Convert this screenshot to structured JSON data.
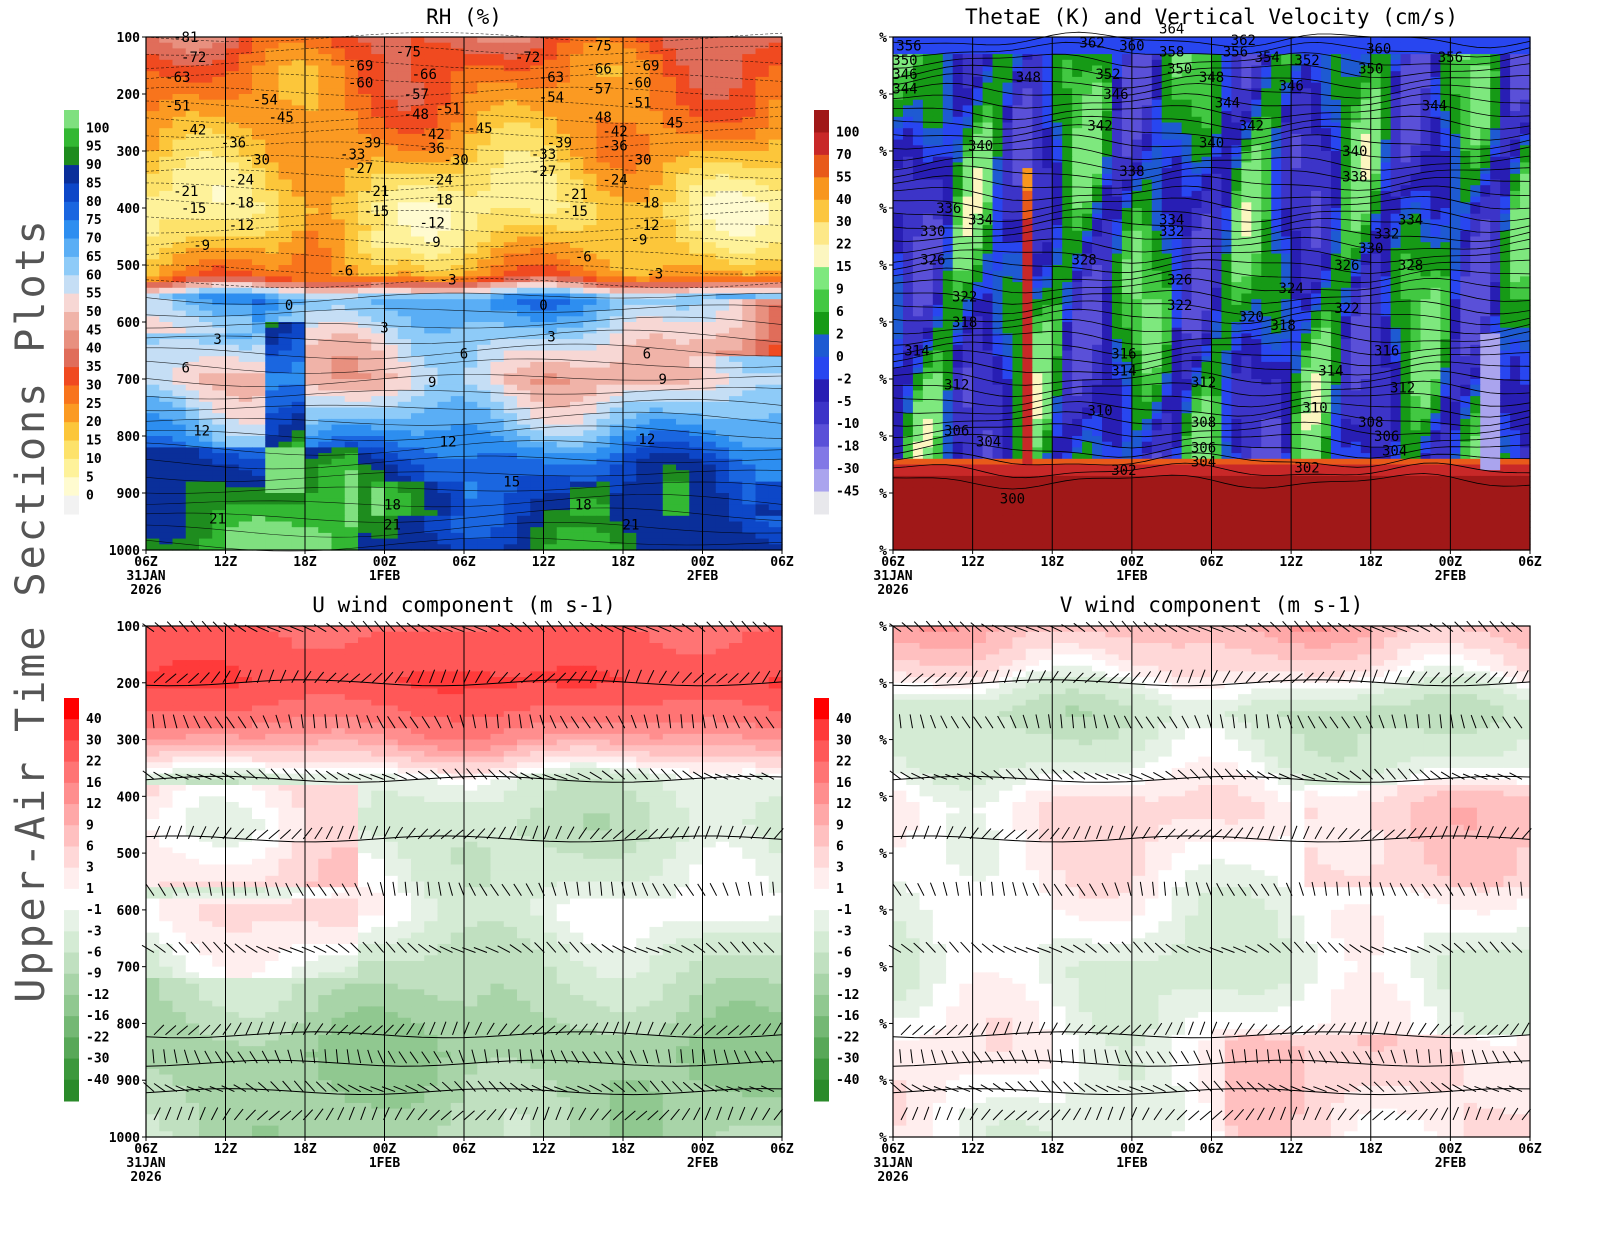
{
  "side_title": "Upper-Air Time Sections Plots",
  "time_axis": {
    "ticks": [
      "06Z",
      "12Z",
      "18Z",
      "00Z",
      "06Z",
      "12Z",
      "18Z",
      "00Z",
      "06Z"
    ],
    "date_labels": [
      {
        "tick": 0,
        "lines": [
          "31JAN",
          "2026"
        ]
      },
      {
        "tick": 3,
        "lines": [
          "1FEB"
        ]
      },
      {
        "tick": 7,
        "lines": [
          "2FEB"
        ]
      }
    ]
  },
  "pressure_axis": {
    "levels": [
      100,
      200,
      300,
      400,
      500,
      600,
      700,
      800,
      900,
      1000
    ],
    "percent_label": "%"
  },
  "chart_data": [
    {
      "id": "rh",
      "type": "heatmap",
      "title": "RH (%)",
      "y_tick_style": "pressure",
      "colorbar": {
        "side": "left",
        "labels": [
          "100",
          "95",
          "90",
          "85",
          "80",
          "75",
          "70",
          "65",
          "60",
          "55",
          "50",
          "45",
          "40",
          "35",
          "30",
          "25",
          "20",
          "15",
          "10",
          "5",
          "0"
        ],
        "colors": [
          "#7fe07f",
          "#33b833",
          "#1e8c1e",
          "#0a2f9a",
          "#0d47c8",
          "#1a66e0",
          "#2d8ef0",
          "#5aaef5",
          "#8ecbf8",
          "#c5def5",
          "#f7d7d4",
          "#f0b3a8",
          "#e8907f",
          "#e06d5a",
          "#f04a20",
          "#f8741c",
          "#fb9a22",
          "#fcc63a",
          "#fde26a",
          "#fef29a",
          "#fffbd0",
          "#f2f2f2"
        ]
      },
      "rh_profile": [
        {
          "p": 100,
          "rh": 35
        },
        {
          "p": 160,
          "rh": 28
        },
        {
          "p": 230,
          "rh": 25
        },
        {
          "p": 300,
          "rh": 20
        },
        {
          "p": 340,
          "rh": 15
        },
        {
          "p": 400,
          "rh": 10
        },
        {
          "p": 460,
          "rh": 15
        },
        {
          "p": 520,
          "rh": 25
        },
        {
          "p": 560,
          "rh": 70
        },
        {
          "p": 650,
          "rh": 55
        },
        {
          "p": 700,
          "rh": 50
        },
        {
          "p": 780,
          "rh": 65
        },
        {
          "p": 850,
          "rh": 80
        },
        {
          "p": 920,
          "rh": 85
        },
        {
          "p": 1000,
          "rh": 90
        }
      ],
      "contour_labels": [
        {
          "t": 0.5,
          "p": 100,
          "v": "-81"
        },
        {
          "t": 0.6,
          "p": 135,
          "v": "-72"
        },
        {
          "t": 0.4,
          "p": 170,
          "v": "-63"
        },
        {
          "t": 0.4,
          "p": 220,
          "v": "-51"
        },
        {
          "t": 0.6,
          "p": 262,
          "v": "-42"
        },
        {
          "t": 1.5,
          "p": 210,
          "v": "-54"
        },
        {
          "t": 1.7,
          "p": 240,
          "v": "-45"
        },
        {
          "t": 1.1,
          "p": 285,
          "v": "-36"
        },
        {
          "t": 1.4,
          "p": 315,
          "v": "-30"
        },
        {
          "t": 0.5,
          "p": 370,
          "v": "-21"
        },
        {
          "t": 1.2,
          "p": 350,
          "v": "-24"
        },
        {
          "t": 0.6,
          "p": 400,
          "v": "-15"
        },
        {
          "t": 1.2,
          "p": 390,
          "v": "-18"
        },
        {
          "t": 1.2,
          "p": 430,
          "v": "-12"
        },
        {
          "t": 0.7,
          "p": 465,
          "v": "-9"
        },
        {
          "t": 2.5,
          "p": 510,
          "v": "-6"
        },
        {
          "t": 1.8,
          "p": 570,
          "v": "0"
        },
        {
          "t": 0.9,
          "p": 630,
          "v": "3"
        },
        {
          "t": 0.5,
          "p": 680,
          "v": "6"
        },
        {
          "t": 0.7,
          "p": 790,
          "v": "12"
        },
        {
          "t": 0.9,
          "p": 945,
          "v": "21"
        },
        {
          "t": 2.7,
          "p": 150,
          "v": "-69"
        },
        {
          "t": 3.3,
          "p": 125,
          "v": "-75"
        },
        {
          "t": 2.7,
          "p": 180,
          "v": "-60"
        },
        {
          "t": 3.5,
          "p": 165,
          "v": "-66"
        },
        {
          "t": 3.4,
          "p": 200,
          "v": "-57"
        },
        {
          "t": 3.4,
          "p": 235,
          "v": "-48"
        },
        {
          "t": 3.8,
          "p": 225,
          "v": "-51"
        },
        {
          "t": 4.2,
          "p": 260,
          "v": "-45"
        },
        {
          "t": 3.6,
          "p": 270,
          "v": "-42"
        },
        {
          "t": 3.6,
          "p": 295,
          "v": "-36"
        },
        {
          "t": 2.8,
          "p": 285,
          "v": "-39"
        },
        {
          "t": 2.6,
          "p": 305,
          "v": "-33"
        },
        {
          "t": 3.9,
          "p": 315,
          "v": "-30"
        },
        {
          "t": 2.7,
          "p": 330,
          "v": "-27"
        },
        {
          "t": 3.7,
          "p": 350,
          "v": "-24"
        },
        {
          "t": 2.9,
          "p": 370,
          "v": "-21"
        },
        {
          "t": 3.7,
          "p": 385,
          "v": "-18"
        },
        {
          "t": 2.9,
          "p": 405,
          "v": "-15"
        },
        {
          "t": 3.6,
          "p": 425,
          "v": "-12"
        },
        {
          "t": 3.6,
          "p": 460,
          "v": "-9"
        },
        {
          "t": 3.8,
          "p": 525,
          "v": "-3"
        },
        {
          "t": 3.0,
          "p": 610,
          "v": "3"
        },
        {
          "t": 4.0,
          "p": 655,
          "v": "6"
        },
        {
          "t": 3.6,
          "p": 705,
          "v": "9"
        },
        {
          "t": 3.8,
          "p": 810,
          "v": "12"
        },
        {
          "t": 4.6,
          "p": 880,
          "v": "15"
        },
        {
          "t": 3.1,
          "p": 920,
          "v": "18"
        },
        {
          "t": 3.1,
          "p": 955,
          "v": "21"
        },
        {
          "t": 4.8,
          "p": 135,
          "v": "-72"
        },
        {
          "t": 5.7,
          "p": 115,
          "v": "-75"
        },
        {
          "t": 5.1,
          "p": 170,
          "v": "-63"
        },
        {
          "t": 5.7,
          "p": 155,
          "v": "-66"
        },
        {
          "t": 6.3,
          "p": 150,
          "v": "-69"
        },
        {
          "t": 6.2,
          "p": 180,
          "v": "-60"
        },
        {
          "t": 5.7,
          "p": 190,
          "v": "-57"
        },
        {
          "t": 5.1,
          "p": 205,
          "v": "-54"
        },
        {
          "t": 6.2,
          "p": 215,
          "v": "-51"
        },
        {
          "t": 5.7,
          "p": 240,
          "v": "-48"
        },
        {
          "t": 6.6,
          "p": 250,
          "v": "-45"
        },
        {
          "t": 5.9,
          "p": 265,
          "v": "-42"
        },
        {
          "t": 5.2,
          "p": 285,
          "v": "-39"
        },
        {
          "t": 5.9,
          "p": 290,
          "v": "-36"
        },
        {
          "t": 5.0,
          "p": 305,
          "v": "-33"
        },
        {
          "t": 6.2,
          "p": 315,
          "v": "-30"
        },
        {
          "t": 5.0,
          "p": 335,
          "v": "-27"
        },
        {
          "t": 5.4,
          "p": 375,
          "v": "-21"
        },
        {
          "t": 5.9,
          "p": 350,
          "v": "-24"
        },
        {
          "t": 5.4,
          "p": 405,
          "v": "-15"
        },
        {
          "t": 6.3,
          "p": 390,
          "v": "-18"
        },
        {
          "t": 6.3,
          "p": 430,
          "v": "-12"
        },
        {
          "t": 6.2,
          "p": 455,
          "v": "-9"
        },
        {
          "t": 5.5,
          "p": 485,
          "v": "-6"
        },
        {
          "t": 6.4,
          "p": 515,
          "v": "-3"
        },
        {
          "t": 5.0,
          "p": 570,
          "v": "0"
        },
        {
          "t": 5.1,
          "p": 625,
          "v": "3"
        },
        {
          "t": 6.3,
          "p": 655,
          "v": "6"
        },
        {
          "t": 6.5,
          "p": 700,
          "v": "9"
        },
        {
          "t": 6.3,
          "p": 805,
          "v": "12"
        },
        {
          "t": 5.5,
          "p": 920,
          "v": "18"
        },
        {
          "t": 6.1,
          "p": 955,
          "v": "21"
        }
      ]
    },
    {
      "id": "thetae",
      "type": "heatmap",
      "title": "ThetaE (K) and Vertical Velocity (cm/s)",
      "y_tick_style": "percent",
      "colorbar": {
        "side": "left",
        "labels": [
          "100",
          "70",
          "55",
          "40",
          "30",
          "22",
          "15",
          "9",
          "6",
          "2",
          "0",
          "-2",
          "-5",
          "-10",
          "-18",
          "-30",
          "-45"
        ],
        "colors": [
          "#a01818",
          "#c82828",
          "#e85a1a",
          "#f8961e",
          "#fcc640",
          "#fde888",
          "#fcf6c0",
          "#7ee87e",
          "#42c842",
          "#169a16",
          "#1e5ad2",
          "#2846f0",
          "#281eb4",
          "#3c34c8",
          "#5a50d8",
          "#8278e6",
          "#aaa4ee",
          "#e8e8ec"
        ]
      },
      "theta_labels": [
        {
          "t": 0.2,
          "p": 115,
          "v": "356"
        },
        {
          "t": 0.15,
          "p": 140,
          "v": "350"
        },
        {
          "t": 0.15,
          "p": 165,
          "v": "346"
        },
        {
          "t": 0.15,
          "p": 190,
          "v": "344"
        },
        {
          "t": 0.7,
          "p": 400,
          "v": "336"
        },
        {
          "t": 0.5,
          "p": 440,
          "v": "330"
        },
        {
          "t": 0.5,
          "p": 490,
          "v": "326"
        },
        {
          "t": 1.1,
          "p": 420,
          "v": "334"
        },
        {
          "t": 0.9,
          "p": 555,
          "v": "322"
        },
        {
          "t": 0.9,
          "p": 600,
          "v": "318"
        },
        {
          "t": 0.3,
          "p": 650,
          "v": "314"
        },
        {
          "t": 0.8,
          "p": 710,
          "v": "312"
        },
        {
          "t": 0.8,
          "p": 790,
          "v": "306"
        },
        {
          "t": 1.2,
          "p": 810,
          "v": "304"
        },
        {
          "t": 1.5,
          "p": 910,
          "v": "300"
        },
        {
          "t": 1.7,
          "p": 170,
          "v": "348"
        },
        {
          "t": 1.1,
          "p": 290,
          "v": "340"
        },
        {
          "t": 2.5,
          "p": 110,
          "v": "362"
        },
        {
          "t": 2.6,
          "p": 255,
          "v": "342"
        },
        {
          "t": 2.8,
          "p": 200,
          "v": "346"
        },
        {
          "t": 2.7,
          "p": 165,
          "v": "352"
        },
        {
          "t": 3.0,
          "p": 115,
          "v": "360"
        },
        {
          "t": 3.5,
          "p": 125,
          "v": "358"
        },
        {
          "t": 3.6,
          "p": 155,
          "v": "350"
        },
        {
          "t": 2.4,
          "p": 490,
          "v": "328"
        },
        {
          "t": 3.0,
          "p": 335,
          "v": "338"
        },
        {
          "t": 3.5,
          "p": 85,
          "v": "364"
        },
        {
          "t": 4.0,
          "p": 170,
          "v": "348"
        },
        {
          "t": 3.5,
          "p": 420,
          "v": "334"
        },
        {
          "t": 3.5,
          "p": 440,
          "v": "332"
        },
        {
          "t": 3.6,
          "p": 525,
          "v": "326"
        },
        {
          "t": 3.6,
          "p": 570,
          "v": "322"
        },
        {
          "t": 2.9,
          "p": 655,
          "v": "316"
        },
        {
          "t": 2.9,
          "p": 685,
          "v": "314"
        },
        {
          "t": 2.6,
          "p": 755,
          "v": "310"
        },
        {
          "t": 3.9,
          "p": 705,
          "v": "312"
        },
        {
          "t": 3.9,
          "p": 775,
          "v": "308"
        },
        {
          "t": 3.9,
          "p": 820,
          "v": "306"
        },
        {
          "t": 3.9,
          "p": 845,
          "v": "304"
        },
        {
          "t": 2.9,
          "p": 860,
          "v": "302"
        },
        {
          "t": 4.3,
          "p": 125,
          "v": "356"
        },
        {
          "t": 4.7,
          "p": 135,
          "v": "354"
        },
        {
          "t": 5.2,
          "p": 140,
          "v": "352"
        },
        {
          "t": 5.0,
          "p": 185,
          "v": "346"
        },
        {
          "t": 4.2,
          "p": 215,
          "v": "344"
        },
        {
          "t": 4.5,
          "p": 255,
          "v": "342"
        },
        {
          "t": 4.0,
          "p": 285,
          "v": "340"
        },
        {
          "t": 4.4,
          "p": 105,
          "v": "362"
        },
        {
          "t": 6.1,
          "p": 120,
          "v": "360"
        },
        {
          "t": 7.0,
          "p": 135,
          "v": "356"
        },
        {
          "t": 6.0,
          "p": 155,
          "v": "350"
        },
        {
          "t": 6.8,
          "p": 220,
          "v": "344"
        },
        {
          "t": 5.8,
          "p": 300,
          "v": "340"
        },
        {
          "t": 5.8,
          "p": 345,
          "v": "338"
        },
        {
          "t": 6.5,
          "p": 420,
          "v": "334"
        },
        {
          "t": 6.2,
          "p": 445,
          "v": "332"
        },
        {
          "t": 6.0,
          "p": 470,
          "v": "330"
        },
        {
          "t": 6.5,
          "p": 500,
          "v": "328"
        },
        {
          "t": 5.7,
          "p": 500,
          "v": "326"
        },
        {
          "t": 5.0,
          "p": 540,
          "v": "324"
        },
        {
          "t": 5.7,
          "p": 575,
          "v": "322"
        },
        {
          "t": 4.5,
          "p": 590,
          "v": "320"
        },
        {
          "t": 4.9,
          "p": 605,
          "v": "318"
        },
        {
          "t": 6.2,
          "p": 650,
          "v": "316"
        },
        {
          "t": 5.5,
          "p": 685,
          "v": "314"
        },
        {
          "t": 6.4,
          "p": 715,
          "v": "312"
        },
        {
          "t": 5.3,
          "p": 750,
          "v": "310"
        },
        {
          "t": 6.0,
          "p": 775,
          "v": "308"
        },
        {
          "t": 6.2,
          "p": 800,
          "v": "306"
        },
        {
          "t": 6.3,
          "p": 825,
          "v": "304"
        },
        {
          "t": 5.2,
          "p": 855,
          "v": "302"
        }
      ]
    },
    {
      "id": "uwind",
      "type": "heatmap",
      "title": "U wind component (m s-1)",
      "y_tick_style": "pressure",
      "colorbar": {
        "side": "left",
        "labels": [
          "40",
          "30",
          "22",
          "16",
          "12",
          "9",
          "6",
          "3",
          "1",
          "-1",
          "-3",
          "-6",
          "-9",
          "-12",
          "-16",
          "-22",
          "-30",
          "-40"
        ],
        "colors": [
          "#ff0000",
          "#ff3a3a",
          "#ff5858",
          "#ff7474",
          "#ff8e8e",
          "#ffa8a8",
          "#ffc0c0",
          "#ffd8d8",
          "#ffeeee",
          "#ffffff",
          "#e6f2e6",
          "#d4ebd4",
          "#c0e0c0",
          "#a8d4a8",
          "#90c890",
          "#74b874",
          "#58a858",
          "#3c983c",
          "#2a8a2a"
        ]
      },
      "u_profile": [
        {
          "p": 100,
          "u": 22
        },
        {
          "p": 200,
          "u": 30
        },
        {
          "p": 300,
          "u": 12
        },
        {
          "p": 370,
          "u": -3
        },
        {
          "p": 450,
          "u": -6
        },
        {
          "p": 550,
          "u": -3
        },
        {
          "p": 600,
          "u": -1
        },
        {
          "p": 700,
          "u": -6
        },
        {
          "p": 850,
          "u": -12
        },
        {
          "p": 1000,
          "u": -9
        }
      ]
    },
    {
      "id": "vwind",
      "type": "heatmap",
      "title": "V wind component (m s-1)",
      "y_tick_style": "percent",
      "colorbar": {
        "side": "left",
        "labels": [
          "40",
          "30",
          "22",
          "16",
          "12",
          "9",
          "6",
          "3",
          "1",
          "-1",
          "-3",
          "-6",
          "-9",
          "-12",
          "-16",
          "-22",
          "-30",
          "-40"
        ],
        "colors": [
          "#ff0000",
          "#ff3a3a",
          "#ff5858",
          "#ff7474",
          "#ff8e8e",
          "#ffa8a8",
          "#ffc0c0",
          "#ffd8d8",
          "#ffeeee",
          "#ffffff",
          "#e6f2e6",
          "#d4ebd4",
          "#c0e0c0",
          "#a8d4a8",
          "#90c890",
          "#74b874",
          "#58a858",
          "#3c983c",
          "#2a8a2a"
        ]
      },
      "v_profile": [
        {
          "p": 100,
          "v": 9
        },
        {
          "p": 170,
          "v": 3
        },
        {
          "p": 250,
          "v": -6
        },
        {
          "p": 330,
          "v": -3
        },
        {
          "p": 420,
          "v": 3
        },
        {
          "p": 520,
          "v": 1
        },
        {
          "p": 620,
          "v": -1
        },
        {
          "p": 700,
          "v": -3
        },
        {
          "p": 850,
          "v": 1
        },
        {
          "p": 1000,
          "v": -1
        }
      ]
    }
  ]
}
